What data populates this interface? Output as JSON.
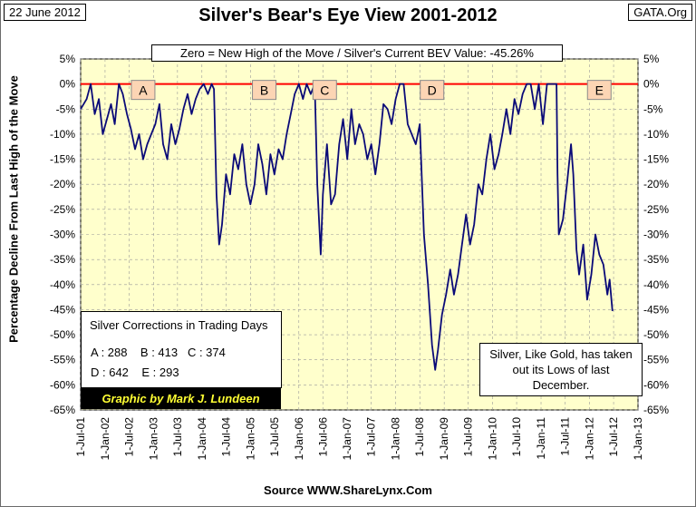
{
  "header": {
    "date": "22 June 2012",
    "site": "GATA.Org"
  },
  "chart_data": {
    "type": "line",
    "title": "Silver's Bear's Eye View 2001-2012",
    "subtitle": "Zero = New High of the Move / Silver's Current BEV Value: -45.26%",
    "ylabel": "Percentage Decline From Last High of the Move",
    "xlabel": "Source WWW.ShareLynx.Com",
    "ylim": [
      -65,
      5
    ],
    "yticks": [
      "5%",
      "0%",
      "-5%",
      "-10%",
      "-15%",
      "-20%",
      "-25%",
      "-30%",
      "-35%",
      "-40%",
      "-45%",
      "-50%",
      "-55%",
      "-60%",
      "-65%"
    ],
    "xticks": [
      "1-Jul-01",
      "1-Jan-02",
      "1-Jul-02",
      "1-Jan-03",
      "1-Jul-03",
      "1-Jan-04",
      "1-Jul-04",
      "1-Jan-05",
      "1-Jul-05",
      "1-Jan-06",
      "1-Jul-06",
      "1-Jan-07",
      "1-Jul-07",
      "1-Jan-08",
      "1-Jul-08",
      "1-Jan-09",
      "1-Jul-09",
      "1-Jan-10",
      "1-Jul-10",
      "1-Jan-11",
      "1-Jul-11",
      "1-Jan-12",
      "1-Jul-12",
      "1-Jan-13"
    ],
    "grid": true,
    "colors": {
      "plot_bg": "#ffffcc",
      "series": "#0a0a78",
      "zero_line": "#ff0000",
      "label_bg": "#fcd5b4"
    },
    "series": [
      {
        "name": "Silver BEV",
        "points": [
          [
            "2001-07-01",
            -5
          ],
          [
            "2001-08-15",
            -3
          ],
          [
            "2001-09-15",
            0
          ],
          [
            "2001-10-15",
            -6
          ],
          [
            "2001-11-15",
            -3
          ],
          [
            "2001-12-15",
            -10
          ],
          [
            "2002-01-15",
            -7
          ],
          [
            "2002-02-15",
            -4
          ],
          [
            "2002-03-15",
            -8
          ],
          [
            "2002-04-15",
            0
          ],
          [
            "2002-05-15",
            -2
          ],
          [
            "2002-06-15",
            -6
          ],
          [
            "2002-07-15",
            -9
          ],
          [
            "2002-08-15",
            -13
          ],
          [
            "2002-09-15",
            -10
          ],
          [
            "2002-10-15",
            -15
          ],
          [
            "2002-11-15",
            -12
          ],
          [
            "2002-12-15",
            -10
          ],
          [
            "2003-01-15",
            -8
          ],
          [
            "2003-02-15",
            -4
          ],
          [
            "2003-03-15",
            -12
          ],
          [
            "2003-04-15",
            -15
          ],
          [
            "2003-05-15",
            -8
          ],
          [
            "2003-06-15",
            -12
          ],
          [
            "2003-07-15",
            -9
          ],
          [
            "2003-08-15",
            -5
          ],
          [
            "2003-09-15",
            -2
          ],
          [
            "2003-10-15",
            -6
          ],
          [
            "2003-11-15",
            -3
          ],
          [
            "2003-12-15",
            -1
          ],
          [
            "2004-01-15",
            0
          ],
          [
            "2004-02-15",
            -2
          ],
          [
            "2004-03-15",
            0
          ],
          [
            "2004-04-01",
            -1
          ],
          [
            "2004-04-20",
            -22
          ],
          [
            "2004-05-10",
            -32
          ],
          [
            "2004-06-01",
            -28
          ],
          [
            "2004-07-01",
            -18
          ],
          [
            "2004-08-01",
            -22
          ],
          [
            "2004-09-01",
            -14
          ],
          [
            "2004-10-01",
            -17
          ],
          [
            "2004-11-01",
            -12
          ],
          [
            "2004-12-01",
            -20
          ],
          [
            "2005-01-01",
            -24
          ],
          [
            "2005-02-01",
            -20
          ],
          [
            "2005-03-01",
            -12
          ],
          [
            "2005-04-01",
            -16
          ],
          [
            "2005-05-01",
            -22
          ],
          [
            "2005-06-01",
            -14
          ],
          [
            "2005-07-01",
            -18
          ],
          [
            "2005-08-01",
            -13
          ],
          [
            "2005-09-01",
            -15
          ],
          [
            "2005-10-01",
            -10
          ],
          [
            "2005-11-01",
            -6
          ],
          [
            "2005-12-01",
            -2
          ],
          [
            "2006-01-01",
            0
          ],
          [
            "2006-02-01",
            -3
          ],
          [
            "2006-03-01",
            0
          ],
          [
            "2006-04-01",
            -2
          ],
          [
            "2006-05-01",
            0
          ],
          [
            "2006-05-20",
            -20
          ],
          [
            "2006-06-15",
            -34
          ],
          [
            "2006-07-01",
            -22
          ],
          [
            "2006-08-01",
            -12
          ],
          [
            "2006-09-01",
            -24
          ],
          [
            "2006-10-01",
            -22
          ],
          [
            "2006-11-01",
            -12
          ],
          [
            "2006-12-01",
            -7
          ],
          [
            "2007-01-01",
            -15
          ],
          [
            "2007-02-01",
            -5
          ],
          [
            "2007-03-01",
            -12
          ],
          [
            "2007-04-01",
            -8
          ],
          [
            "2007-05-01",
            -10
          ],
          [
            "2007-06-01",
            -15
          ],
          [
            "2007-07-01",
            -12
          ],
          [
            "2007-08-01",
            -18
          ],
          [
            "2007-09-01",
            -12
          ],
          [
            "2007-10-01",
            -4
          ],
          [
            "2007-11-01",
            -5
          ],
          [
            "2007-12-01",
            -8
          ],
          [
            "2008-01-01",
            -3
          ],
          [
            "2008-02-01",
            0
          ],
          [
            "2008-03-01",
            0
          ],
          [
            "2008-04-01",
            -8
          ],
          [
            "2008-05-01",
            -10
          ],
          [
            "2008-06-01",
            -12
          ],
          [
            "2008-07-01",
            -8
          ],
          [
            "2008-08-01",
            -30
          ],
          [
            "2008-09-01",
            -40
          ],
          [
            "2008-10-01",
            -52
          ],
          [
            "2008-10-25",
            -57
          ],
          [
            "2008-11-15",
            -53
          ],
          [
            "2008-12-15",
            -46
          ],
          [
            "2009-01-15",
            -42
          ],
          [
            "2009-02-15",
            -37
          ],
          [
            "2009-03-15",
            -42
          ],
          [
            "2009-04-15",
            -38
          ],
          [
            "2009-05-15",
            -32
          ],
          [
            "2009-06-15",
            -26
          ],
          [
            "2009-07-15",
            -32
          ],
          [
            "2009-08-15",
            -28
          ],
          [
            "2009-09-15",
            -20
          ],
          [
            "2009-10-15",
            -22
          ],
          [
            "2009-11-15",
            -15
          ],
          [
            "2009-12-15",
            -10
          ],
          [
            "2010-01-15",
            -17
          ],
          [
            "2010-02-15",
            -14
          ],
          [
            "2010-03-15",
            -10
          ],
          [
            "2010-04-15",
            -5
          ],
          [
            "2010-05-15",
            -10
          ],
          [
            "2010-06-15",
            -3
          ],
          [
            "2010-07-15",
            -6
          ],
          [
            "2010-08-15",
            -2
          ],
          [
            "2010-09-15",
            0
          ],
          [
            "2010-10-15",
            0
          ],
          [
            "2010-11-15",
            -5
          ],
          [
            "2010-12-15",
            0
          ],
          [
            "2011-01-15",
            -8
          ],
          [
            "2011-02-15",
            0
          ],
          [
            "2011-03-15",
            0
          ],
          [
            "2011-04-15",
            0
          ],
          [
            "2011-04-28",
            0
          ],
          [
            "2011-05-05",
            -18
          ],
          [
            "2011-05-15",
            -30
          ],
          [
            "2011-06-15",
            -27
          ],
          [
            "2011-07-15",
            -20
          ],
          [
            "2011-08-15",
            -12
          ],
          [
            "2011-09-01",
            -18
          ],
          [
            "2011-09-25",
            -33
          ],
          [
            "2011-10-15",
            -38
          ],
          [
            "2011-11-15",
            -32
          ],
          [
            "2011-12-15",
            -43
          ],
          [
            "2012-01-15",
            -38
          ],
          [
            "2012-02-15",
            -30
          ],
          [
            "2012-03-15",
            -34
          ],
          [
            "2012-04-15",
            -36
          ],
          [
            "2012-05-15",
            -42
          ],
          [
            "2012-06-01",
            -39
          ],
          [
            "2012-06-22",
            -45.26
          ]
        ]
      }
    ],
    "annotations": [
      {
        "label": "A",
        "date": "2002-10-15"
      },
      {
        "label": "B",
        "date": "2005-04-15"
      },
      {
        "label": "C",
        "date": "2006-07-15"
      },
      {
        "label": "D",
        "date": "2008-10-01"
      },
      {
        "label": "E",
        "date": "2012-03-15"
      }
    ]
  },
  "corrections": {
    "title": "Silver Corrections in Trading Days",
    "line1": "A : 288    B : 413   C : 374",
    "line2": "D : 642    E : 293"
  },
  "credit": "Graphic by Mark J. Lundeen",
  "note": "Silver, Like Gold, has taken out its Lows of last December."
}
